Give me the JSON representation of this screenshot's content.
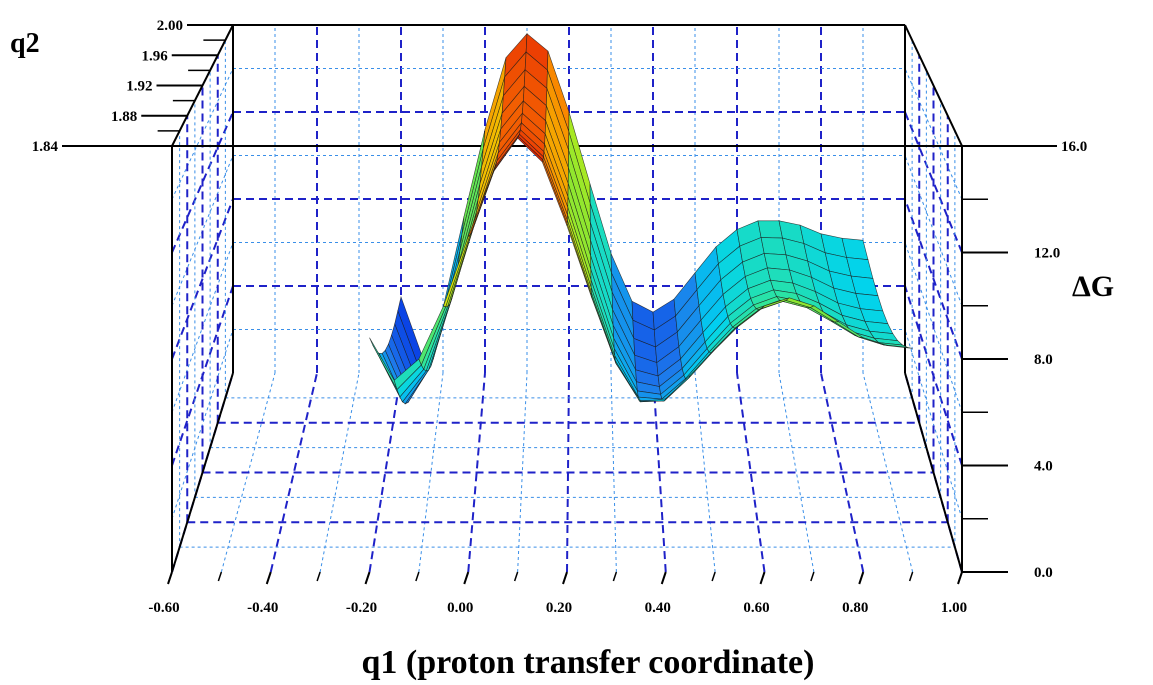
{
  "chart_data": {
    "type": "surface",
    "title": "",
    "axes": {
      "x": {
        "label": "q1 (proton transfer coordinate)",
        "range": [
          -0.6,
          1.0
        ],
        "ticks": [
          "-0.60",
          "-0.40",
          "-0.20",
          "0.00",
          "0.20",
          "0.40",
          "0.60",
          "0.80",
          "1.00"
        ]
      },
      "y": {
        "label": "q2",
        "range": [
          1.84,
          2.0
        ],
        "ticks": [
          "1.84",
          "1.88",
          "1.92",
          "1.96",
          "2.00"
        ]
      },
      "z": {
        "label": "ΔG",
        "range": [
          0,
          16
        ],
        "ticks": [
          "0.0",
          "4.0",
          "8.0",
          "12.0",
          "16.0"
        ]
      }
    },
    "grid": true,
    "colormap": "jet",
    "q1_values": [
      -0.2,
      -0.15,
      -0.1,
      -0.05,
      0.0,
      0.05,
      0.1,
      0.15,
      0.2,
      0.25,
      0.3,
      0.35,
      0.4,
      0.45,
      0.5,
      0.55,
      0.6,
      0.65,
      0.7,
      0.75,
      0.8,
      0.85,
      0.9
    ],
    "dG_front_q2_1.84": [
      8.8,
      7.2,
      8.0,
      10.0,
      12.6,
      15.0,
      16.3,
      15.4,
      13.0,
      10.3,
      7.8,
      6.4,
      6.5,
      7.4,
      8.4,
      9.3,
      10.0,
      10.3,
      10.0,
      9.4,
      8.8,
      8.5,
      8.4
    ],
    "dG_back_q2_2.00": [
      3.5,
      0.8,
      3.0,
      7.2,
      11.2,
      14.5,
      15.6,
      14.8,
      12.0,
      8.7,
      5.5,
      3.3,
      2.8,
      3.4,
      4.6,
      5.8,
      6.6,
      7.0,
      7.0,
      6.8,
      6.4,
      6.2,
      6.1
    ]
  }
}
